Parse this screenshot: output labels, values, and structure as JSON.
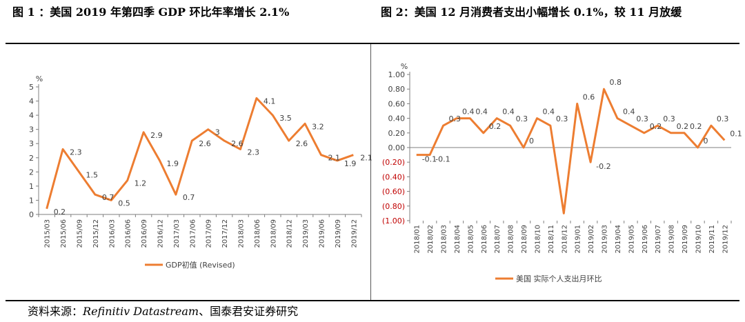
{
  "titles": {
    "fig1": "图 1 ：美国 2019 年第四季 GDP 环比年率增长 2.1%",
    "fig2": "图 2：美国 12 月消费者支出小幅增长 0.1%，较 11 月放缓"
  },
  "source": {
    "label": "资料来源：",
    "italic": "Refinitiv Datastream",
    "rest": "、国泰君安证券研究"
  },
  "colors": {
    "series": "#ED7D31",
    "axis": "#7f7f7f",
    "text": "#404040"
  },
  "chart_data": [
    {
      "type": "line",
      "ylabel": "%",
      "ytick_labels": [
        "0",
        "1",
        "1",
        "2",
        "2",
        "3",
        "3",
        "4",
        "4",
        "5"
      ],
      "ylim": [
        0,
        4.5
      ],
      "categories": [
        "2015/03",
        "2015/06",
        "2015/09",
        "2015/12",
        "2016/03",
        "2016/06",
        "2016/09",
        "2016/12",
        "2017/03",
        "2017/06",
        "2017/09",
        "2017/12",
        "2018/03",
        "2018/06",
        "2018/09",
        "2018/12",
        "2019/03",
        "2019/06",
        "2019/09",
        "2019/12"
      ],
      "series": [
        {
          "name": "GDP初值 (Revised)",
          "values": [
            0.2,
            2.3,
            1.5,
            0.7,
            0.5,
            1.2,
            2.9,
            1.9,
            0.7,
            2.6,
            3,
            2.6,
            2.3,
            4.1,
            3.5,
            2.6,
            3.2,
            2.1,
            1.9,
            2.1
          ],
          "labels": [
            "0.2",
            "2.3",
            "1.5",
            "0.7",
            "0.5",
            "1.2",
            "2.9",
            "1.9",
            "0.7",
            "2.6",
            "3",
            "2.6",
            "2.3",
            "4.1",
            "3.5",
            "2.6",
            "3.2",
            "2.1",
            "1.9",
            "2.1"
          ]
        }
      ]
    },
    {
      "type": "line",
      "ylabel": "%",
      "ytick_labels": [
        "(1.00)",
        "(0.80)",
        "(0.60)",
        "(0.40)",
        "(0.20)",
        "0.00",
        "0.20",
        "0.40",
        "0.60",
        "0.80",
        "1.00"
      ],
      "ylim": [
        -1,
        1
      ],
      "categories": [
        "2018/01",
        "2018/02",
        "2018/03",
        "2018/04",
        "2018/05",
        "2018/06",
        "2018/07",
        "2018/08",
        "2018/09",
        "2018/10",
        "2018/11",
        "2018/12",
        "2019/01",
        "2019/02",
        "2019/03",
        "2019/04",
        "2019/05",
        "2019/06",
        "2019/07",
        "2019/08",
        "2019/09",
        "2019/10",
        "2019/11",
        "2019/12"
      ],
      "series": [
        {
          "name": "美国 实际个人支出月环比",
          "values": [
            -0.1,
            -0.1,
            0.3,
            0.4,
            0.4,
            0.2,
            0.4,
            0.3,
            0,
            0.4,
            0.3,
            -0.9,
            0.6,
            -0.2,
            0.8,
            0.4,
            0.3,
            0.2,
            0.3,
            0.2,
            0.2,
            0,
            0.3,
            0.1
          ],
          "labels": [
            "-0.1",
            "-0.1",
            "0.3",
            "0.4",
            "0.4",
            "0.2",
            "0.4",
            "0.3",
            "0",
            "0.4",
            "0.3",
            "",
            "0.6",
            "-0.2",
            "0.8",
            "0.4",
            "0.3",
            "0.2",
            "0.3",
            "0.2",
            "0.2",
            "0",
            "0.3",
            "0.1"
          ]
        }
      ]
    }
  ]
}
